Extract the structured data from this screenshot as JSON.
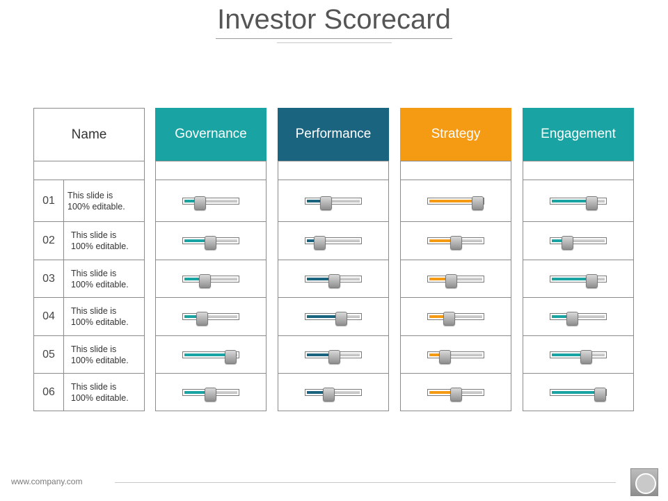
{
  "title": "Investor Scorecard",
  "name_header": "Name",
  "rows": [
    {
      "num": "01",
      "desc_line1": "This slide is",
      "desc_line2": "100% editable."
    },
    {
      "num": "02",
      "desc_line1": "This slide is",
      "desc_line2": "100% editable."
    },
    {
      "num": "03",
      "desc_line1": "This slide is",
      "desc_line2": "100% editable."
    },
    {
      "num": "04",
      "desc_line1": "This slide is",
      "desc_line2": "100% editable."
    },
    {
      "num": "05",
      "desc_line1": "This slide is",
      "desc_line2": "100% editable."
    },
    {
      "num": "06",
      "desc_line1": "This slide is",
      "desc_line2": "100% editable."
    }
  ],
  "metrics": [
    {
      "label": "Governance",
      "color": "#1aa3a3",
      "levels": [
        0.27,
        0.48,
        0.37,
        0.31,
        0.86,
        0.48
      ]
    },
    {
      "label": "Performance",
      "color": "#1a6480",
      "levels": [
        0.34,
        0.23,
        0.5,
        0.63,
        0.5,
        0.4
      ]
    },
    {
      "label": "Strategy",
      "color": "#f59a13",
      "levels": [
        0.89,
        0.49,
        0.4,
        0.35,
        0.28,
        0.49
      ]
    },
    {
      "label": "Engagement",
      "color": "#1aa3a3",
      "levels": [
        0.74,
        0.27,
        0.74,
        0.37,
        0.63,
        0.89
      ]
    }
  ],
  "footer": {
    "website": "www.company.com",
    "logo_icon": "circle-logo-icon"
  }
}
